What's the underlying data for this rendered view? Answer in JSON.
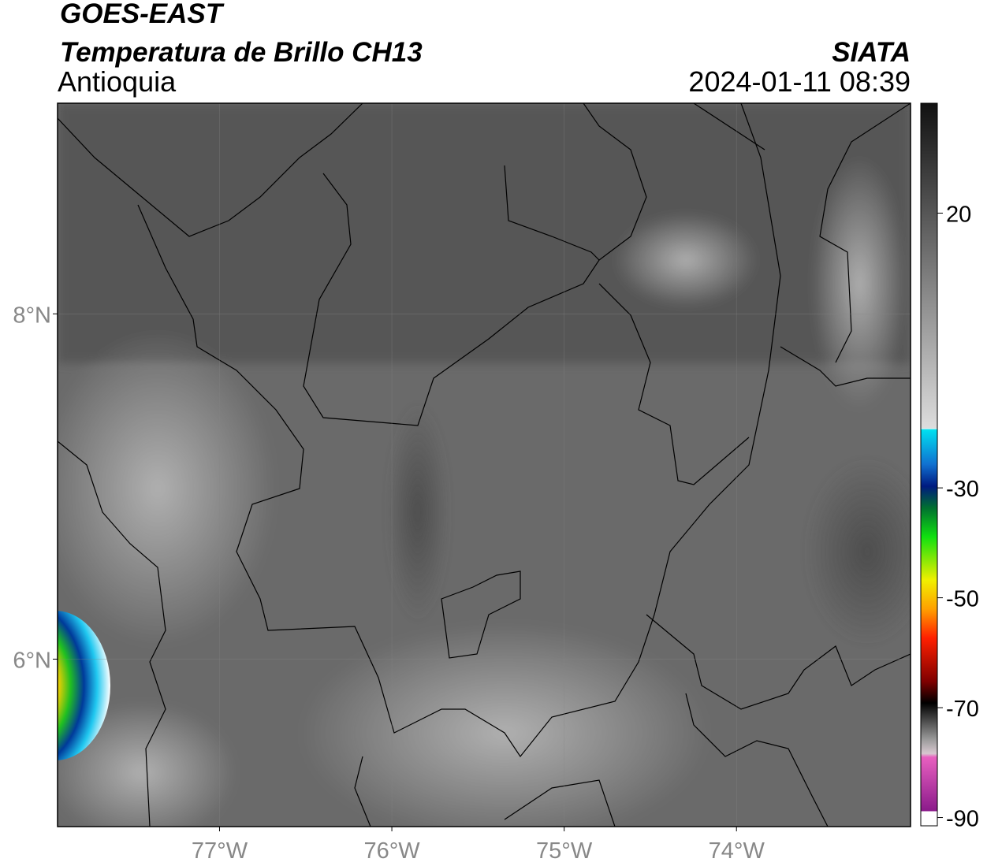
{
  "header": {
    "title": "GOES-EAST",
    "subtitle": "Temperatura de Brillo CH13",
    "region": "Antioquia",
    "source": "SIATA",
    "datetime": "2024-01-11 08:39"
  },
  "map": {
    "xlim": [
      -77.94,
      -72.99
    ],
    "ylim": [
      5.03,
      9.22
    ],
    "xticks": [
      {
        "value": -77,
        "label": "77°W"
      },
      {
        "value": -76,
        "label": "76°W"
      },
      {
        "value": -75,
        "label": "75°W"
      },
      {
        "value": -74,
        "label": "74°W"
      }
    ],
    "yticks": [
      {
        "value": 8,
        "label": "8°N"
      },
      {
        "value": 6,
        "label": "6°N"
      }
    ],
    "grid": true
  },
  "colorbar": {
    "lim": [
      -91.5,
      40
    ],
    "ticks": [
      20,
      -30,
      -50,
      -70,
      -90
    ]
  }
}
